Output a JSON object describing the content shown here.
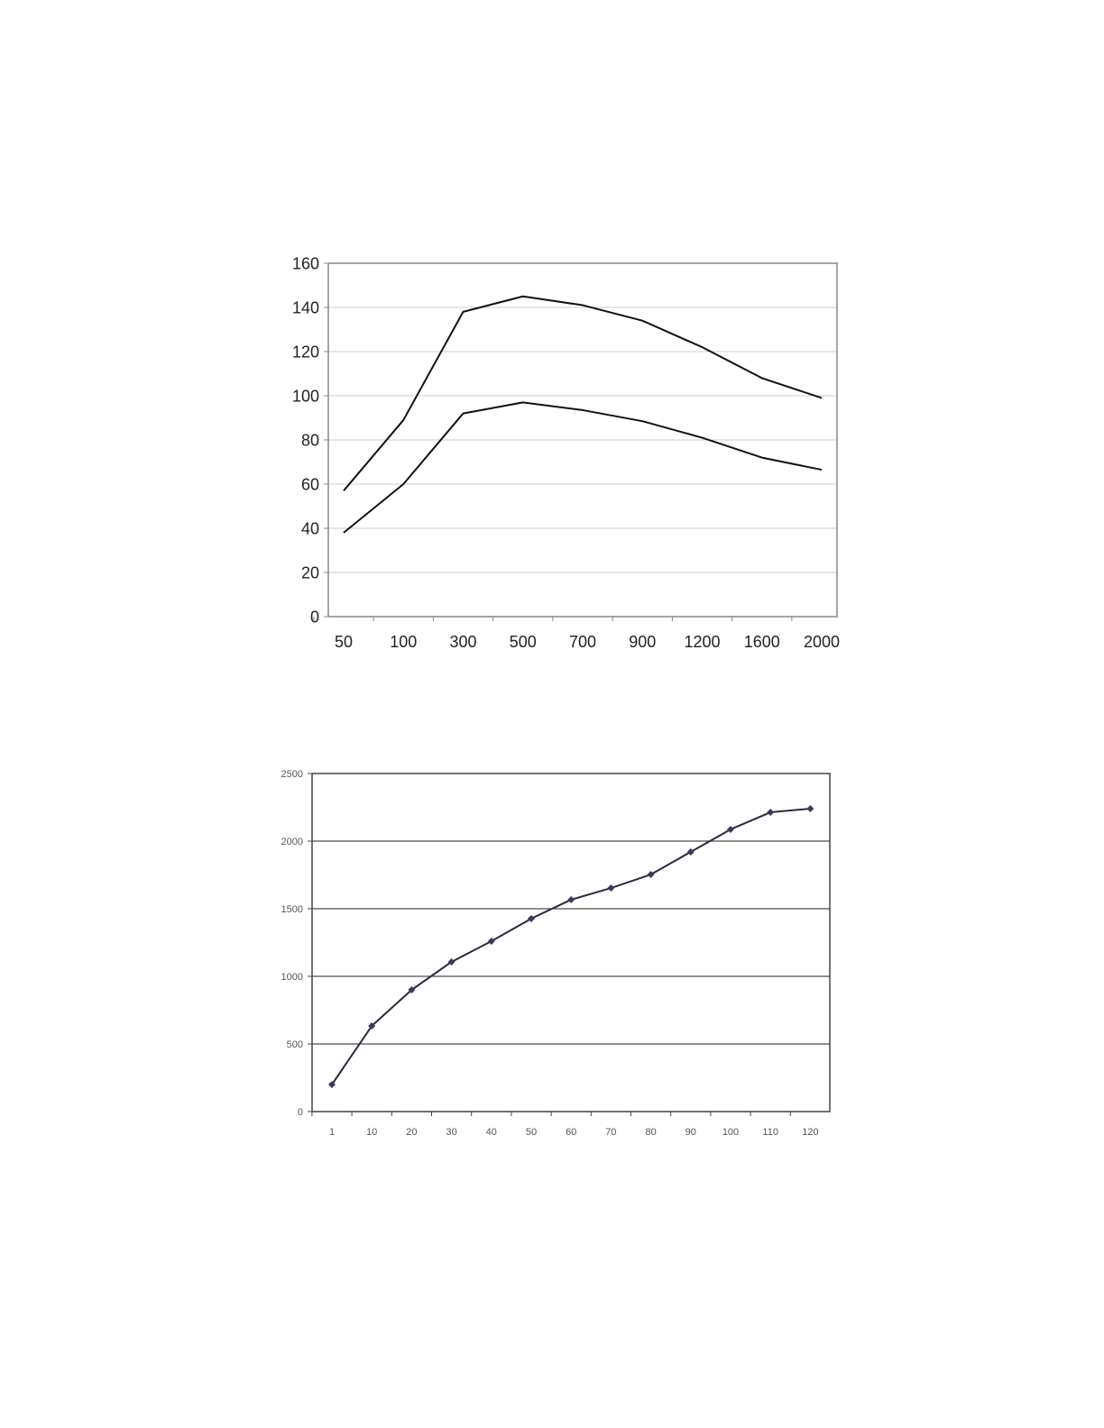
{
  "chart_data": [
    {
      "type": "line",
      "categories": [
        "50",
        "100",
        "300",
        "500",
        "700",
        "900",
        "1200",
        "1600",
        "2000"
      ],
      "ylim": [
        0,
        160
      ],
      "yticks": [
        "0",
        "20",
        "40",
        "60",
        "80",
        "100",
        "120",
        "140",
        "160"
      ],
      "grid": true,
      "series": [
        {
          "values": [
            57,
            89,
            138,
            145,
            141,
            134,
            122,
            108,
            99
          ],
          "color": "#111111"
        },
        {
          "values": [
            38,
            60,
            92,
            97,
            93.5,
            88.5,
            81,
            72,
            66.5
          ],
          "color": "#111111"
        }
      ]
    },
    {
      "type": "line",
      "categories": [
        "1",
        "10",
        "20",
        "30",
        "40",
        "50",
        "60",
        "70",
        "80",
        "90",
        "100",
        "110",
        "120"
      ],
      "ylim": [
        0,
        2500
      ],
      "yticks": [
        "0",
        "500",
        "1000",
        "1500",
        "2000",
        "2500"
      ],
      "grid": true,
      "markers": "diamond",
      "series": [
        {
          "values": [
            200,
            633,
            900,
            1107,
            1260,
            1427,
            1567,
            1653,
            1753,
            1920,
            2087,
            2213,
            2240
          ],
          "color": "#2a2a40"
        }
      ]
    }
  ]
}
